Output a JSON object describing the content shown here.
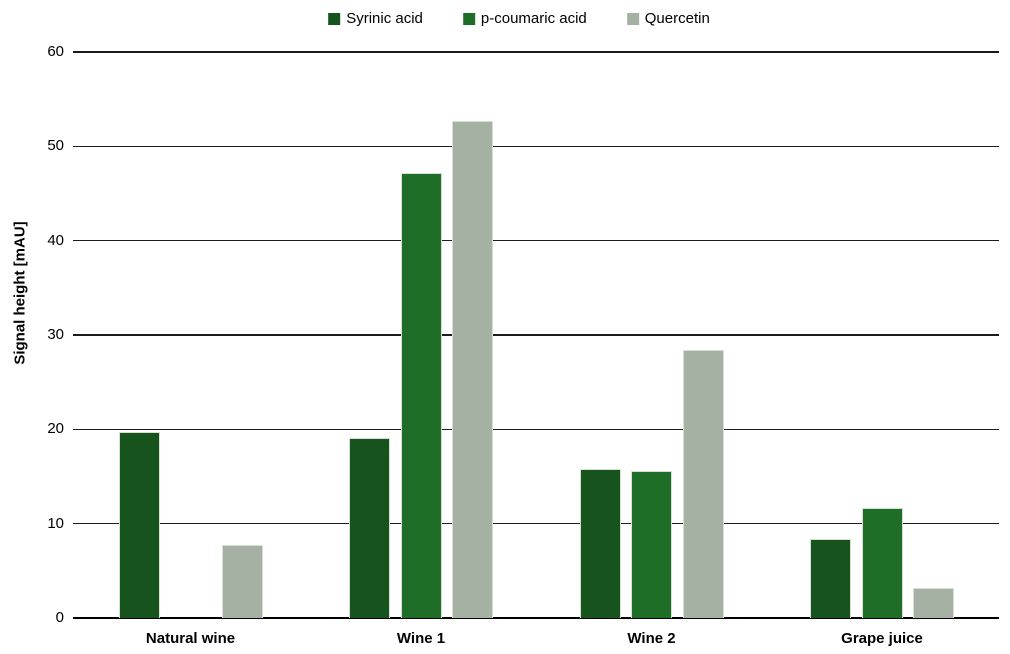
{
  "chart_data": {
    "type": "bar",
    "title": "",
    "categories": [
      "Natural wine",
      "Wine 1",
      "Wine 2",
      "Grape juice"
    ],
    "series": [
      {
        "name": "Syrinic acid",
        "color": "#17531d",
        "values": [
          19.7,
          19.1,
          15.8,
          8.4
        ]
      },
      {
        "name": "p-coumaric acid",
        "color": "#1e6e27",
        "values": [
          0,
          47.2,
          15.6,
          11.7
        ]
      },
      {
        "name": "Quercetin",
        "color": "#a5b2a3",
        "values": [
          7.7,
          52.7,
          28.4,
          3.2
        ]
      }
    ],
    "xlabel": "",
    "ylabel": "Signal height [mAU]",
    "ylim": [
      0,
      60
    ],
    "yticks": [
      0,
      10,
      20,
      30,
      40,
      50,
      60
    ],
    "grid": true,
    "legend_position": "top",
    "axis_color": "#000000",
    "gridline_color": "#1c1c1c",
    "bar_border_color": "#d8dfd5"
  }
}
